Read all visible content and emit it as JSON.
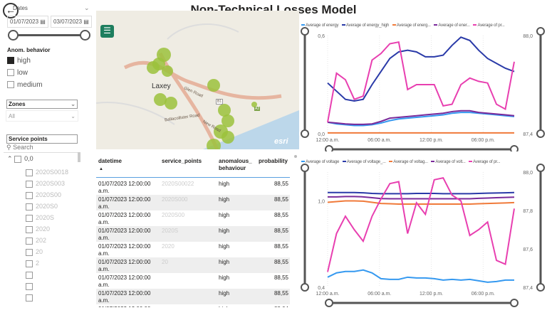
{
  "title": "Non-Technical Losses Model",
  "filters": {
    "date_header": "Dates",
    "date_from": "01/07/2023",
    "date_to": "03/07/2023",
    "anom_label": "Anom. behavior",
    "anom_options": [
      {
        "label": "high",
        "checked": true
      },
      {
        "label": "low",
        "checked": false
      },
      {
        "label": "medium",
        "checked": false
      }
    ],
    "zones_label": "Zones",
    "zones_value": "All",
    "service_label": "Service points",
    "search_placeholder": "Search",
    "group": "0,0",
    "items": [
      "2020S0018",
      "2020S003",
      "2020S00",
      "2020S0",
      "2020S",
      "2020",
      "202",
      "20",
      "2",
      "",
      "",
      ""
    ]
  },
  "map": {
    "place": "Laxey",
    "roads": [
      "Glen Road",
      "B1",
      "A2",
      "New Road",
      "Ballacollister Road"
    ],
    "brand": "esri",
    "menu_icon": "hamburger-icon"
  },
  "table": {
    "columns": [
      "datetime",
      "service_points",
      "anomalous_\nbehaviour",
      "probability"
    ],
    "rows": [
      [
        "01/07/2023 12:00:00 a.m.",
        "2020S00022",
        "high",
        "88,55"
      ],
      [
        "01/07/2023 12:00:00 a.m.",
        "2020S000",
        "high",
        "88,55"
      ],
      [
        "01/07/2023 12:00:00 a.m.",
        "2020S00",
        "high",
        "88,55"
      ],
      [
        "01/07/2023 12:00:00 a.m.",
        "2020S",
        "high",
        "88,55"
      ],
      [
        "01/07/2023 12:00:00 a.m.",
        "2020",
        "high",
        "88,55"
      ],
      [
        "01/07/2023 12:00:00 a.m.",
        "20",
        "high",
        "88,55"
      ],
      [
        "01/07/2023 12:00:00 a.m.",
        "",
        "high",
        "88,55"
      ],
      [
        "01/07/2023 12:00:00 a.m.",
        "",
        "high",
        "88,55"
      ],
      [
        "01/07/2023 12:00:00 a.m.",
        "",
        "high",
        "88,04"
      ]
    ]
  },
  "chart_data": [
    {
      "type": "line",
      "legend": [
        "Average of energy",
        "Average of energy_high",
        "Average of energ...",
        "Average of ener...",
        "Average of pr..."
      ],
      "colors": [
        "#3599f0",
        "#2a3aa8",
        "#f07a3a",
        "#7a2a9a",
        "#e83fb0"
      ],
      "xticks": [
        "12:00 a.m.",
        "06:00 a.m.",
        "12:00 p.m.",
        "06:00 p.m."
      ],
      "yleft": [
        0,
        0.6
      ],
      "yleft_ticks": [
        "0,0",
        "0,6"
      ],
      "yright": [
        87.4,
        88.0
      ],
      "yright_ticks": [
        "87,4",
        "88,0"
      ],
      "series": [
        {
          "axis": "left",
          "values": [
            0.07,
            0.06,
            0.055,
            0.05,
            0.05,
            0.055,
            0.065,
            0.08,
            0.09,
            0.095,
            0.1,
            0.105,
            0.11,
            0.115,
            0.125,
            0.13,
            0.13,
            0.125,
            0.12,
            0.115,
            0.11,
            0.105
          ]
        },
        {
          "axis": "left",
          "values": [
            0.31,
            0.26,
            0.21,
            0.2,
            0.21,
            0.3,
            0.38,
            0.46,
            0.5,
            0.51,
            0.5,
            0.47,
            0.47,
            0.48,
            0.54,
            0.59,
            0.57,
            0.51,
            0.46,
            0.43,
            0.4,
            0.38
          ]
        },
        {
          "axis": "left",
          "values": [
            0.005,
            0.005,
            0.005,
            0.005,
            0.005,
            0.005,
            0.005,
            0.005,
            0.005,
            0.005,
            0.005,
            0.005,
            0.005,
            0.005,
            0.005,
            0.005,
            0.005,
            0.005,
            0.005,
            0.005,
            0.005,
            0.005
          ]
        },
        {
          "axis": "left",
          "values": [
            0.07,
            0.065,
            0.06,
            0.057,
            0.057,
            0.06,
            0.075,
            0.095,
            0.1,
            0.105,
            0.11,
            0.115,
            0.12,
            0.125,
            0.135,
            0.14,
            0.14,
            0.13,
            0.125,
            0.12,
            0.115,
            0.11
          ]
        },
        {
          "axis": "right",
          "values": [
            87.47,
            87.77,
            87.73,
            87.61,
            87.63,
            87.85,
            87.89,
            87.95,
            87.96,
            87.67,
            87.7,
            87.7,
            87.7,
            87.57,
            87.58,
            87.7,
            87.74,
            87.72,
            87.71,
            87.58,
            87.55,
            87.84
          ]
        }
      ]
    },
    {
      "type": "line",
      "legend": [
        "Average of voltage",
        "Average of voltage_...",
        "Average of voltag...",
        "Average of volt...",
        "Average of pr..."
      ],
      "colors": [
        "#3599f0",
        "#2a3aa8",
        "#f07a3a",
        "#7a2a9a",
        "#e83fb0"
      ],
      "xticks": [
        "12:00 a.m.",
        "06:00 a.m.",
        "12:00 p.m.",
        "06:00 p.m."
      ],
      "yleft": [
        0.4,
        1.2
      ],
      "yleft_ticks": [
        "0,4",
        "1,0"
      ],
      "yright": [
        87.4,
        88.0
      ],
      "yright_ticks": [
        "87,4",
        "87,6",
        "87,8",
        "88,0"
      ],
      "series": [
        {
          "axis": "left",
          "values": [
            0.47,
            0.5,
            0.51,
            0.51,
            0.52,
            0.5,
            0.46,
            0.455,
            0.455,
            0.47,
            0.465,
            0.465,
            0.46,
            0.45,
            0.455,
            0.45,
            0.455,
            0.445,
            0.435,
            0.44,
            0.45,
            0.45
          ]
        },
        {
          "axis": "left",
          "values": [
            1.058,
            1.058,
            1.058,
            1.058,
            1.056,
            1.052,
            1.05,
            1.05,
            1.05,
            1.05,
            1.052,
            1.052,
            1.052,
            1.05,
            1.05,
            1.05,
            1.05,
            1.052,
            1.054,
            1.055,
            1.056,
            1.058
          ]
        },
        {
          "axis": "left",
          "values": [
            0.99,
            0.995,
            1.0,
            1.0,
            0.998,
            0.99,
            0.982,
            0.98,
            0.978,
            0.978,
            0.978,
            0.978,
            0.978,
            0.978,
            0.978,
            0.978,
            0.978,
            0.98,
            0.982,
            0.984,
            0.986,
            0.988
          ]
        },
        {
          "axis": "left",
          "values": [
            1.028,
            1.028,
            1.03,
            1.03,
            1.028,
            1.022,
            1.016,
            1.015,
            1.015,
            1.015,
            1.015,
            1.015,
            1.015,
            1.015,
            1.015,
            1.015,
            1.015,
            1.018,
            1.02,
            1.022,
            1.024,
            1.026
          ]
        },
        {
          "axis": "right",
          "values": [
            87.48,
            87.68,
            87.77,
            87.7,
            87.64,
            87.77,
            87.86,
            87.94,
            87.95,
            87.68,
            87.84,
            87.78,
            87.96,
            87.97,
            87.88,
            87.85,
            87.67,
            87.7,
            87.74,
            87.54,
            87.52,
            87.81
          ]
        }
      ]
    }
  ]
}
